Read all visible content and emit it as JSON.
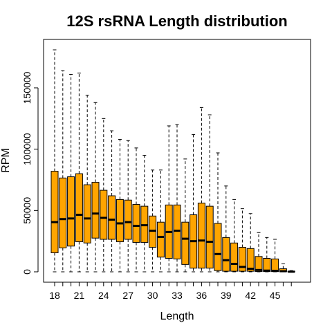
{
  "chart_data": {
    "type": "boxplot",
    "title": "12S rsRNA Length distribution",
    "xlabel": "Length",
    "ylabel": "RPM",
    "ylim": [
      0,
      185000
    ],
    "y_ticks": [
      0,
      50000,
      100000,
      150000
    ],
    "x_tick_labels": [
      "18",
      "21",
      "24",
      "27",
      "30",
      "33",
      "36",
      "39",
      "42",
      "45"
    ],
    "box_color": "#FFA500",
    "grid": false,
    "legend": "none",
    "categories": [
      18,
      19,
      20,
      21,
      22,
      23,
      24,
      25,
      26,
      27,
      28,
      29,
      30,
      31,
      32,
      33,
      34,
      35,
      36,
      37,
      38,
      39,
      40,
      41,
      42,
      43,
      44,
      45,
      46,
      47
    ],
    "boxes": [
      {
        "x": 18,
        "min": 0,
        "q1": 15500,
        "median": 40500,
        "q3": 82000,
        "max": 181000
      },
      {
        "x": 19,
        "min": 0,
        "q1": 19500,
        "median": 43000,
        "q3": 76500,
        "max": 164000
      },
      {
        "x": 20,
        "min": 0,
        "q1": 21000,
        "median": 43500,
        "q3": 77500,
        "max": 161000
      },
      {
        "x": 21,
        "min": 0,
        "q1": 24500,
        "median": 46500,
        "q3": 80000,
        "max": 162000
      },
      {
        "x": 22,
        "min": 0,
        "q1": 23500,
        "median": 43500,
        "q3": 71000,
        "max": 144000
      },
      {
        "x": 23,
        "min": 0,
        "q1": 27500,
        "median": 47500,
        "q3": 73000,
        "max": 138000
      },
      {
        "x": 24,
        "min": 0,
        "q1": 26500,
        "median": 44000,
        "q3": 66500,
        "max": 125000
      },
      {
        "x": 25,
        "min": 0,
        "q1": 26500,
        "median": 42500,
        "q3": 62000,
        "max": 115000
      },
      {
        "x": 26,
        "min": 0,
        "q1": 24500,
        "median": 39500,
        "q3": 59000,
        "max": 108000
      },
      {
        "x": 27,
        "min": 0,
        "q1": 26500,
        "median": 40500,
        "q3": 58500,
        "max": 107000
      },
      {
        "x": 28,
        "min": 0,
        "q1": 24000,
        "median": 37500,
        "q3": 55000,
        "max": 101000
      },
      {
        "x": 29,
        "min": 0,
        "q1": 24000,
        "median": 38000,
        "q3": 53500,
        "max": 95000
      },
      {
        "x": 30,
        "min": 0,
        "q1": 20000,
        "median": 33500,
        "q3": 45500,
        "max": 83000
      },
      {
        "x": 31,
        "min": 0,
        "q1": 12000,
        "median": 28500,
        "q3": 40500,
        "max": 83000
      },
      {
        "x": 32,
        "min": 0,
        "q1": 11000,
        "median": 32500,
        "q3": 54500,
        "max": 119000
      },
      {
        "x": 33,
        "min": 0,
        "q1": 10500,
        "median": 33500,
        "q3": 54500,
        "max": 120000
      },
      {
        "x": 34,
        "min": 0,
        "q1": 6000,
        "median": 27000,
        "q3": 40500,
        "max": 92000
      },
      {
        "x": 35,
        "min": 0,
        "q1": 3000,
        "median": 25000,
        "q3": 46500,
        "max": 112000
      },
      {
        "x": 36,
        "min": 0,
        "q1": 3000,
        "median": 25500,
        "q3": 56000,
        "max": 134000
      },
      {
        "x": 37,
        "min": 0,
        "q1": 3000,
        "median": 24500,
        "q3": 53500,
        "max": 128000
      },
      {
        "x": 38,
        "min": 0,
        "q1": 1000,
        "median": 14500,
        "q3": 39500,
        "max": 97000
      },
      {
        "x": 39,
        "min": 0,
        "q1": 500,
        "median": 9500,
        "q3": 28000,
        "max": 70000
      },
      {
        "x": 40,
        "min": 0,
        "q1": 500,
        "median": 6500,
        "q3": 23500,
        "max": 59000
      },
      {
        "x": 41,
        "min": 0,
        "q1": 500,
        "median": 4000,
        "q3": 20000,
        "max": 51500
      },
      {
        "x": 42,
        "min": 0,
        "q1": 500,
        "median": 2500,
        "q3": 19000,
        "max": 47500
      },
      {
        "x": 43,
        "min": 0,
        "q1": 300,
        "median": 1500,
        "q3": 12500,
        "max": 32000
      },
      {
        "x": 44,
        "min": 0,
        "q1": 200,
        "median": 1000,
        "q3": 11000,
        "max": 28000
      },
      {
        "x": 45,
        "min": 0,
        "q1": 200,
        "median": 800,
        "q3": 10500,
        "max": 26500
      },
      {
        "x": 46,
        "min": 0,
        "q1": 100,
        "median": 500,
        "q3": 2500,
        "max": 6500
      },
      {
        "x": 47,
        "min": 0,
        "q1": 0,
        "median": 100,
        "q3": 500,
        "max": 1000
      }
    ]
  }
}
